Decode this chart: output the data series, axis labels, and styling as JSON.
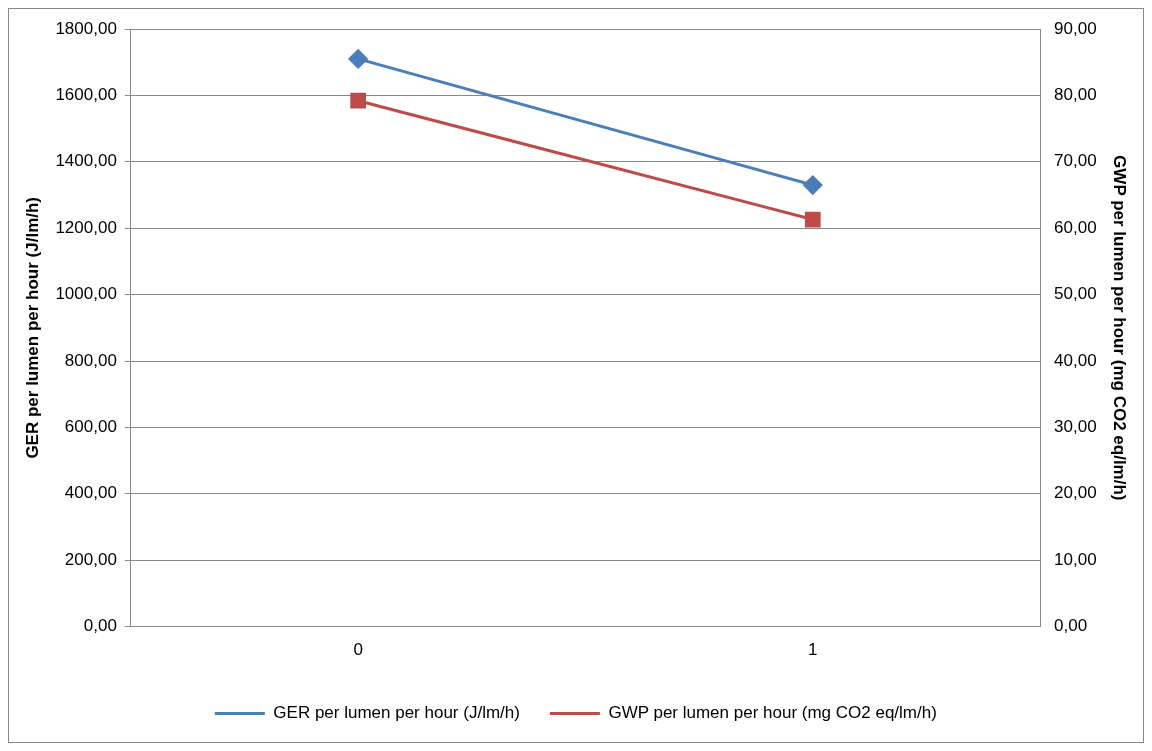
{
  "chart_data": {
    "type": "line",
    "categories": [
      "0",
      "1"
    ],
    "series": [
      {
        "name": "GER per lumen per hour (J/lm/h)",
        "color": "#4a7ebb",
        "values": [
          1710,
          1330
        ],
        "marker": "diamond"
      },
      {
        "name": "GWP per lumen per hour (mg CO2 eq/lm/h)",
        "color": "#be4b48",
        "values": [
          79.2,
          61.3
        ],
        "marker": "square",
        "axis": "y2"
      }
    ],
    "ylabel": "GER per lumen per hour (J/lm/h)",
    "y2label": "GWP per lumen per hour (mg CO2 eq/lm/h)",
    "ylim": [
      0,
      1800
    ],
    "yticks": [
      {
        "value": 0,
        "label": "0,00"
      },
      {
        "value": 200,
        "label": "200,00"
      },
      {
        "value": 400,
        "label": "400,00"
      },
      {
        "value": 600,
        "label": "600,00"
      },
      {
        "value": 800,
        "label": "800,00"
      },
      {
        "value": 1000,
        "label": "1000,00"
      },
      {
        "value": 1200,
        "label": "1200,00"
      },
      {
        "value": 1400,
        "label": "1400,00"
      },
      {
        "value": 1600,
        "label": "1600,00"
      },
      {
        "value": 1800,
        "label": "1800,00"
      }
    ],
    "y2lim": [
      0,
      90
    ],
    "y2ticks": [
      {
        "value": 0,
        "label": "0,00"
      },
      {
        "value": 10,
        "label": "10,00"
      },
      {
        "value": 20,
        "label": "20,00"
      },
      {
        "value": 30,
        "label": "30,00"
      },
      {
        "value": 40,
        "label": "40,00"
      },
      {
        "value": 50,
        "label": "50,00"
      },
      {
        "value": 60,
        "label": "60,00"
      },
      {
        "value": 70,
        "label": "70,00"
      },
      {
        "value": 80,
        "label": "80,00"
      },
      {
        "value": 90,
        "label": "90,00"
      }
    ],
    "grid": "y",
    "legend": "bottom",
    "line_style": "solid"
  }
}
